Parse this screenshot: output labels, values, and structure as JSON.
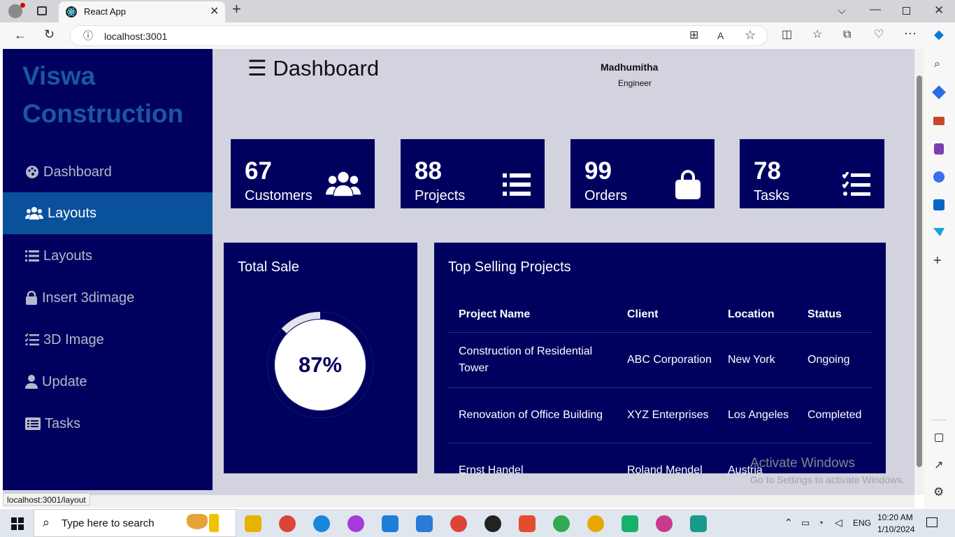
{
  "browser": {
    "tab_title": "React App",
    "url": "localhost:3001",
    "status_url": "localhost:3001/layout"
  },
  "sidebar": {
    "brand_line1": "Viswa",
    "brand_line2": "Construction",
    "items": [
      {
        "label": "Dashboard",
        "icon": "palette-icon",
        "active": false
      },
      {
        "label": "Layouts",
        "icon": "users-icon",
        "active": true
      },
      {
        "label": "Layouts",
        "icon": "list-icon",
        "active": false
      },
      {
        "label": "Insert 3dimage",
        "icon": "lock-icon",
        "active": false
      },
      {
        "label": "3D Image",
        "icon": "checklist-icon",
        "active": false
      },
      {
        "label": "Update",
        "icon": "user-icon",
        "active": false
      },
      {
        "label": "Tasks",
        "icon": "table-list-icon",
        "active": false
      }
    ]
  },
  "header": {
    "menu_icon": "hamburger-icon",
    "title": "Dashboard",
    "user_name": "Madhumitha",
    "user_role": "Engineer"
  },
  "cards": [
    {
      "value": "67",
      "label": "Customers",
      "icon": "users-icon"
    },
    {
      "value": "88",
      "label": "Projects",
      "icon": "list-icon"
    },
    {
      "value": "99",
      "label": "Orders",
      "icon": "shopping-bag-icon"
    },
    {
      "value": "78",
      "label": "Tasks",
      "icon": "checklist-icon"
    }
  ],
  "total_sale": {
    "title": "Total Sale",
    "percent_label": "87%",
    "percent": 87
  },
  "top_selling": {
    "title": "Top Selling Projects",
    "columns": [
      "Project Name",
      "Client",
      "Location",
      "Status"
    ],
    "rows": [
      [
        "Construction of Residential Tower",
        "ABC Corporation",
        "New York",
        "Ongoing"
      ],
      [
        "Renovation of Office Building",
        "XYZ Enterprises",
        "Los Angeles",
        "Completed"
      ],
      [
        "Ernst Handel",
        "Roland Mendel",
        "Austria",
        ""
      ]
    ]
  },
  "watermark": {
    "line1": "Activate Windows",
    "line2": "Go to Settings to activate Windows."
  },
  "taskbar": {
    "search_placeholder": "Type here to search",
    "language": "ENG",
    "time": "10:20 AM",
    "date": "1/10/2024"
  },
  "colors": {
    "sidebar": "#00005f",
    "active": "#0a519c",
    "brand": "#1a57a0",
    "page": "#d3d3df"
  }
}
